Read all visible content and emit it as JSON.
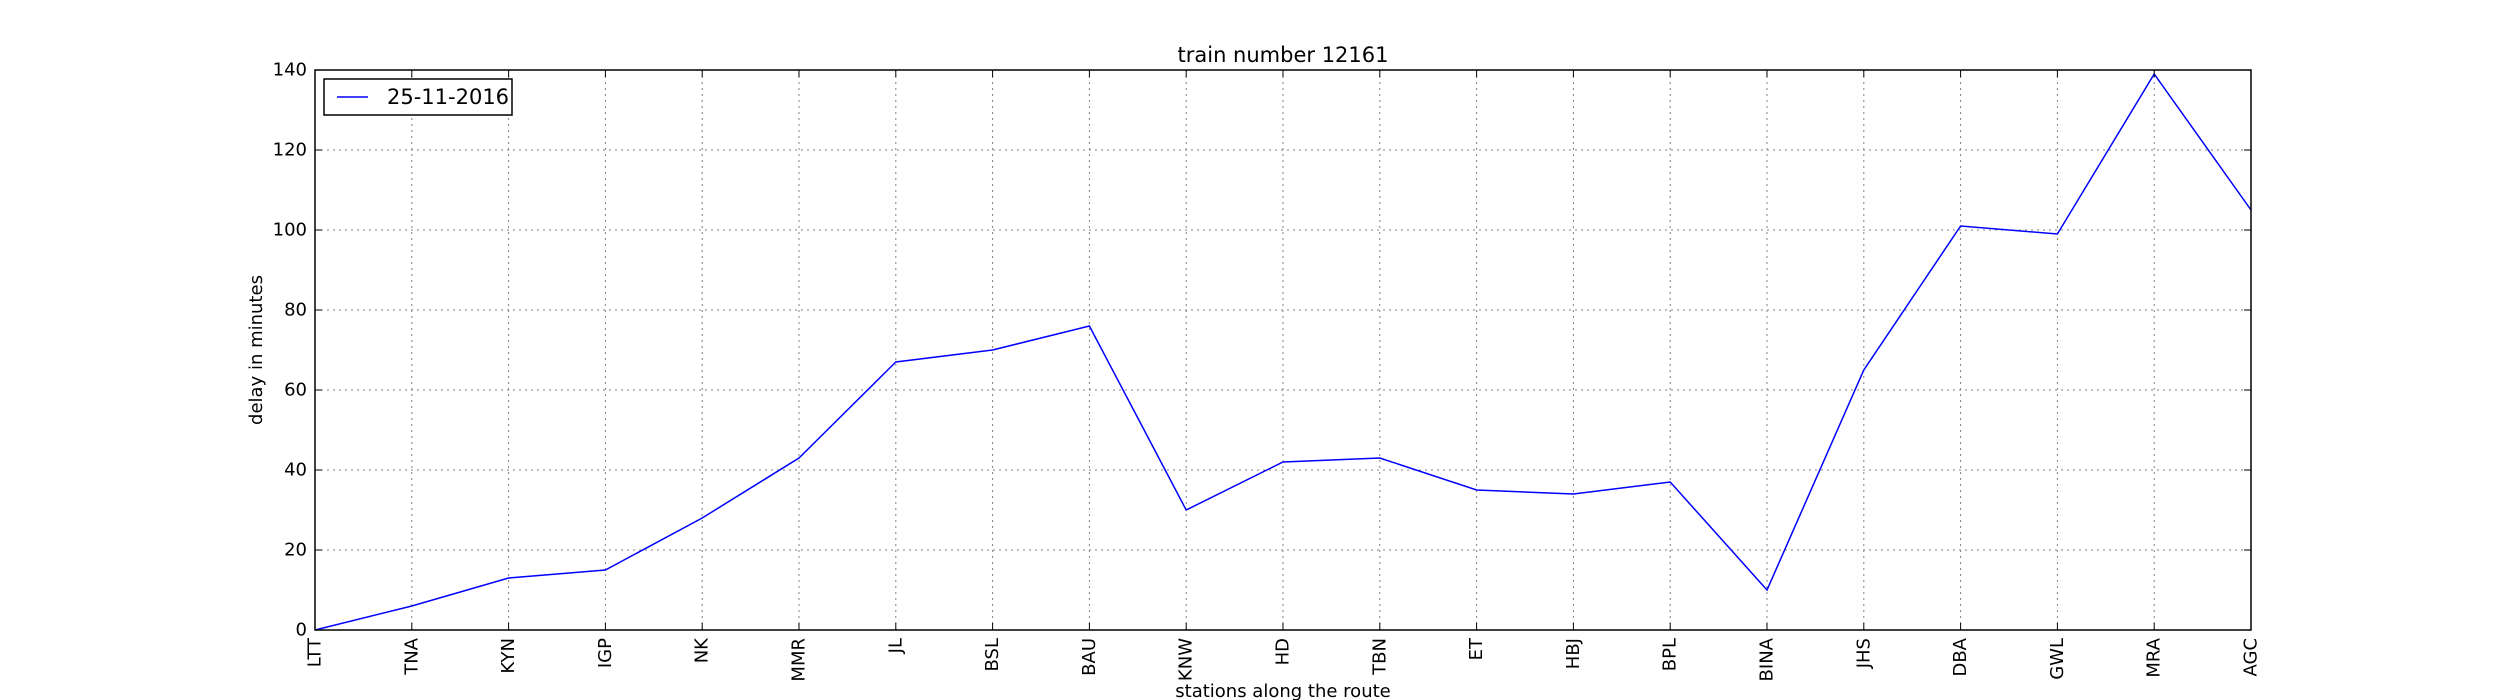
{
  "chart_data": {
    "type": "line",
    "title": "train number 12161",
    "xlabel": "stations along the route",
    "ylabel": "delay in minutes",
    "categories": [
      "LTT",
      "TNA",
      "KYN",
      "IGP",
      "NK",
      "MMR",
      "JL",
      "BSL",
      "BAU",
      "KNW",
      "HD",
      "TBN",
      "ET",
      "HBJ",
      "BPL",
      "BINA",
      "JHS",
      "DBA",
      "GWL",
      "MRA",
      "AGC"
    ],
    "series": [
      {
        "name": "25-11-2016",
        "color": "#0000ff",
        "values": [
          0,
          6,
          13,
          15,
          28,
          43,
          67,
          70,
          76,
          30,
          42,
          43,
          35,
          34,
          37,
          10,
          65,
          101,
          99,
          139,
          105
        ]
      }
    ],
    "ylim": [
      0,
      140
    ],
    "yticks": [
      0,
      20,
      40,
      60,
      80,
      100,
      120,
      140
    ],
    "grid": true,
    "legend_position": "top-left"
  }
}
